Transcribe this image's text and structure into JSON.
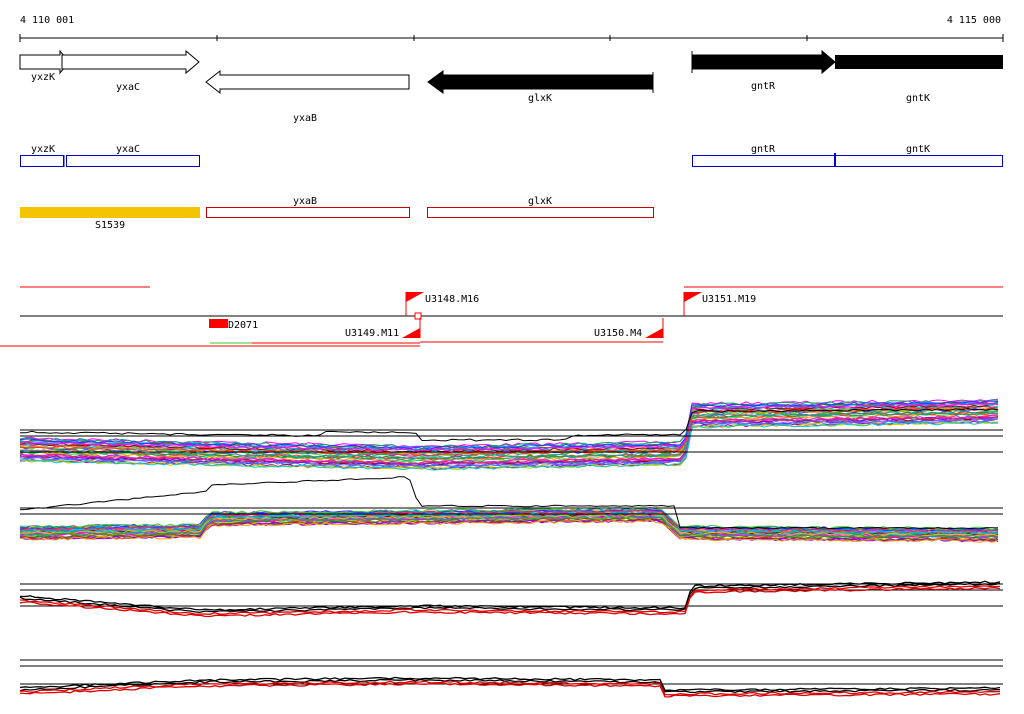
{
  "ruler": {
    "start_label": "4 110 001",
    "end_label": "4 115 000"
  },
  "colors": {
    "gene_outline": "#000000",
    "gene_filled": "#000000",
    "cds": "#0000cc",
    "rna": "#cc0000",
    "s_feature": "#f5c400",
    "transcription_unit": "#ff0000",
    "signal_dark": "#000000",
    "signal_red": "#dd0000"
  },
  "genes_track": [
    {
      "name": "yxzK",
      "strand": "+",
      "filled": false
    },
    {
      "name": "yxaC",
      "strand": "+",
      "filled": false
    },
    {
      "name": "yxaB",
      "strand": "-",
      "filled": false
    },
    {
      "name": "glxK",
      "strand": "-",
      "filled": true
    },
    {
      "name": "gntR",
      "strand": "+",
      "filled": true
    },
    {
      "name": "gntK",
      "strand": "+",
      "filled": true
    }
  ],
  "cds_track": [
    {
      "name": "yxzK"
    },
    {
      "name": "yxaC"
    },
    {
      "name": "gntR"
    },
    {
      "name": "gntK"
    }
  ],
  "rna_track": [
    {
      "name": "S1539",
      "type": "filled"
    },
    {
      "name": "yxaB",
      "type": "outline"
    },
    {
      "name": "glxK",
      "type": "outline"
    }
  ],
  "transcription_units": [
    {
      "name": "U3148.M16"
    },
    {
      "name": "U3151.M19"
    },
    {
      "name": "D2071"
    },
    {
      "name": "U3149.M11"
    },
    {
      "name": "U3150.M4"
    }
  ],
  "expression_tracks": [
    {
      "kind": "multi-condition"
    },
    {
      "kind": "multi-condition"
    },
    {
      "kind": "replicate"
    },
    {
      "kind": "replicate"
    }
  ]
}
